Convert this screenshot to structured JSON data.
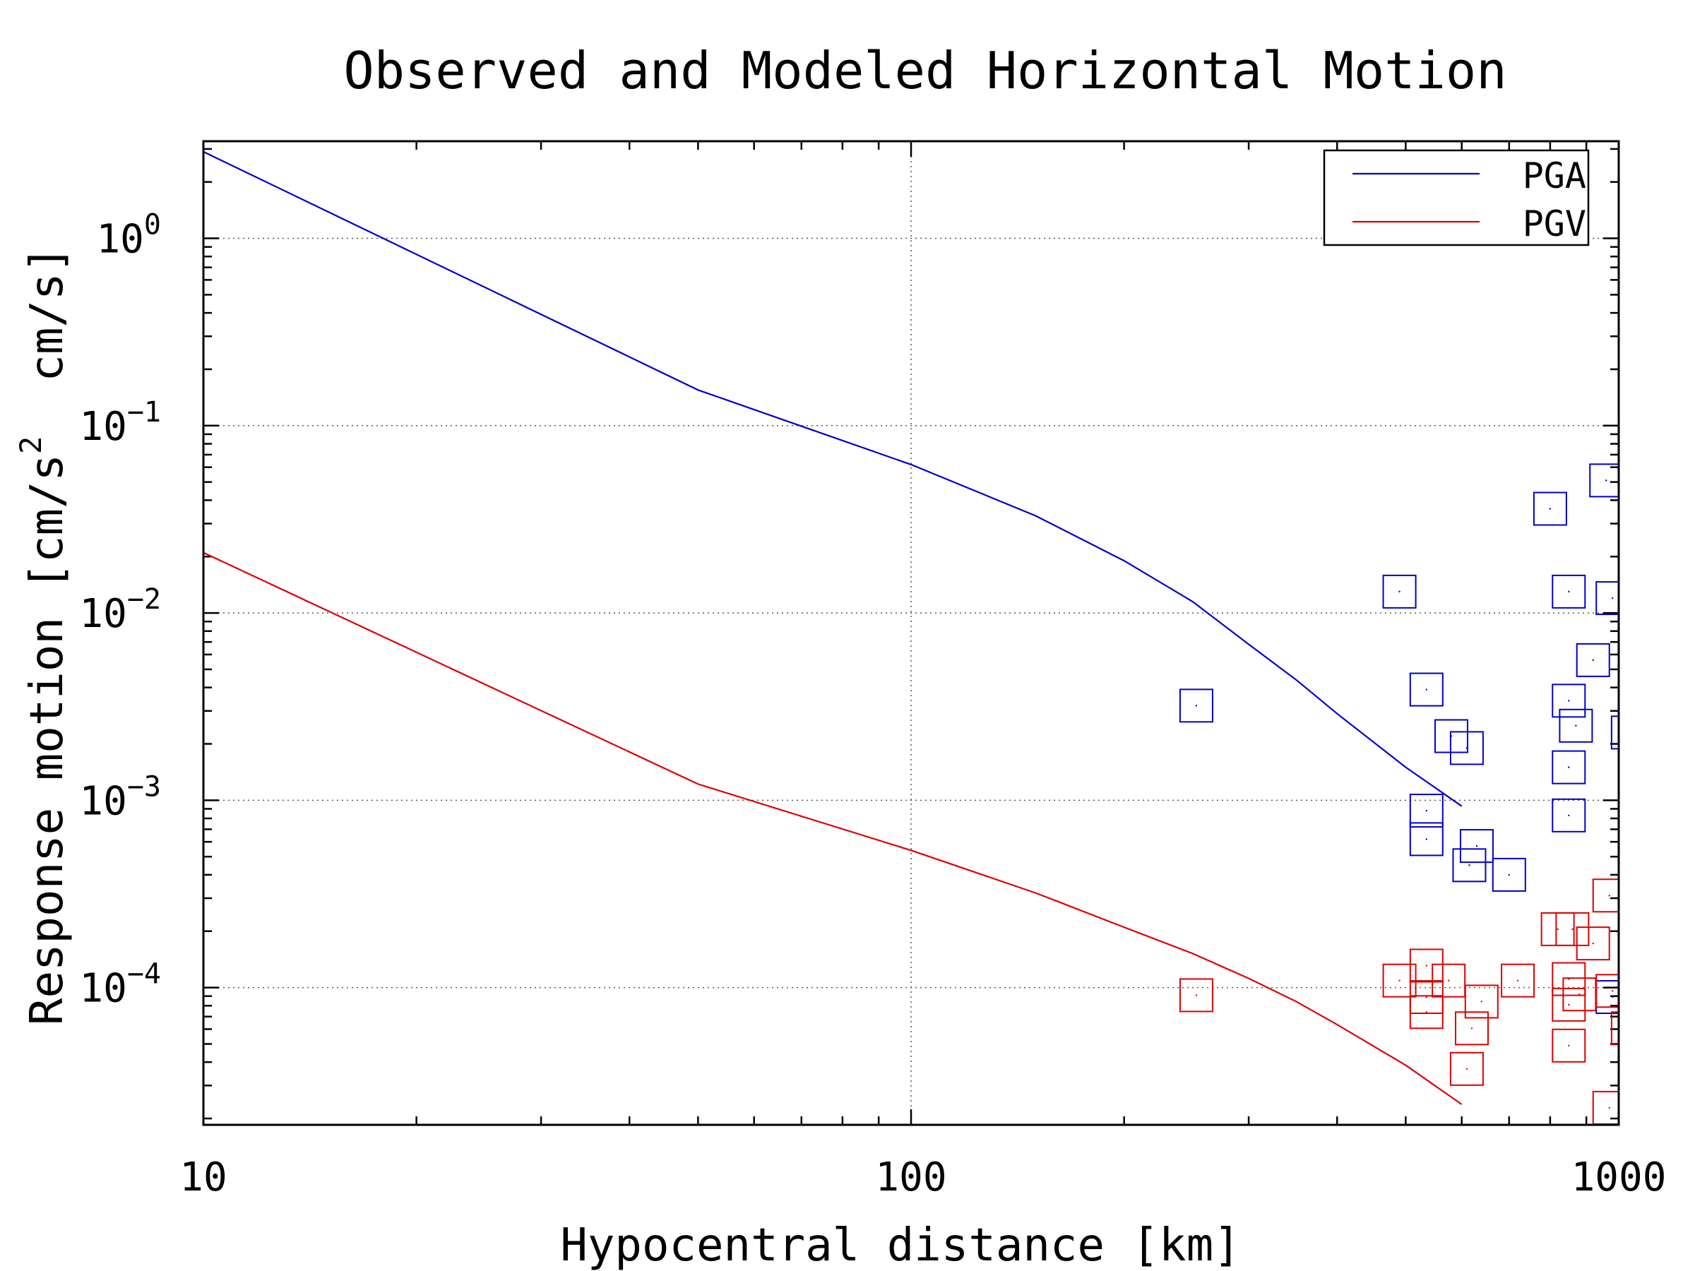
{
  "chart_data": {
    "type": "scatter",
    "title": "Observed and Modeled Horizontal Motion",
    "xlabel": "Hypocentral distance [km]",
    "ylabel_parts": {
      "main": "Response motion [cm/s",
      "sup": "2",
      "tail": "  cm/s]"
    },
    "xscale": "log",
    "yscale": "log",
    "xlim": [
      10,
      1000
    ],
    "ylim": [
      1.85e-05,
      3.3
    ],
    "grid": true,
    "legend_position": "top-right",
    "x_ticks": [
      {
        "value": 10,
        "label": "10"
      },
      {
        "value": 100,
        "label": "100"
      },
      {
        "value": 1000,
        "label": "1000"
      }
    ],
    "y_ticks": [
      {
        "value": 1,
        "base": "10",
        "exp": "0"
      },
      {
        "value": 0.1,
        "base": "10",
        "exp": "−1"
      },
      {
        "value": 0.01,
        "base": "10",
        "exp": "−2"
      },
      {
        "value": 0.001,
        "base": "10",
        "exp": "−3"
      },
      {
        "value": 0.0001,
        "base": "10",
        "exp": "−4"
      }
    ],
    "series": [
      {
        "name": "PGA",
        "color": "#0000cc",
        "line": [
          [
            10,
            2.9
          ],
          [
            50,
            0.155
          ],
          [
            100,
            0.062
          ],
          [
            150,
            0.033
          ],
          [
            200,
            0.019
          ],
          [
            250,
            0.0115
          ],
          [
            300,
            0.0068
          ],
          [
            350,
            0.0044
          ],
          [
            400,
            0.0029
          ],
          [
            500,
            0.0015
          ],
          [
            600,
            0.00093
          ]
        ],
        "points": [
          [
            253,
            0.0032
          ],
          [
            490,
            0.013
          ],
          [
            535,
            0.0039
          ],
          [
            535,
            0.00088
          ],
          [
            535,
            0.00062
          ],
          [
            580,
            0.0022
          ],
          [
            610,
            0.0019
          ],
          [
            615,
            0.00045
          ],
          [
            630,
            0.00057
          ],
          [
            700,
            0.0004
          ],
          [
            800,
            0.036
          ],
          [
            850,
            0.013
          ],
          [
            850,
            0.0034
          ],
          [
            850,
            0.0015
          ],
          [
            850,
            0.00083
          ],
          [
            870,
            0.0025
          ],
          [
            920,
            0.0056
          ],
          [
            960,
            0.051
          ],
          [
            980,
            0.012
          ],
          [
            1030,
            0.0023
          ],
          [
            980,
            8.9e-05
          ]
        ]
      },
      {
        "name": "PGV",
        "color": "#dd0000",
        "line": [
          [
            10,
            0.021
          ],
          [
            50,
            0.00122
          ],
          [
            100,
            0.00054
          ],
          [
            150,
            0.00032
          ],
          [
            200,
            0.00021
          ],
          [
            250,
            0.000152
          ],
          [
            300,
            0.000112
          ],
          [
            350,
            8.43e-05
          ],
          [
            400,
            6.34e-05
          ],
          [
            500,
            3.85e-05
          ],
          [
            600,
            2.38e-05
          ]
        ],
        "points": [
          [
            253,
            9.1e-05
          ],
          [
            490,
            0.000109
          ],
          [
            535,
            0.000131
          ],
          [
            535,
            8.9e-05
          ],
          [
            535,
            7.4e-05
          ],
          [
            575,
            0.000109
          ],
          [
            610,
            3.68e-05
          ],
          [
            620,
            6.06e-05
          ],
          [
            640,
            8.42e-05
          ],
          [
            720,
            0.000109
          ],
          [
            820,
            0.000205
          ],
          [
            860,
            0.000205
          ],
          [
            850,
            0.000111
          ],
          [
            850,
            8.1e-05
          ],
          [
            850,
            4.9e-05
          ],
          [
            880,
            9.2e-05
          ],
          [
            920,
            0.000172
          ],
          [
            970,
            0.00031
          ],
          [
            980,
            9.6e-05
          ],
          [
            1030,
            6.06e-05
          ],
          [
            970,
            2.28e-05
          ]
        ]
      }
    ]
  }
}
